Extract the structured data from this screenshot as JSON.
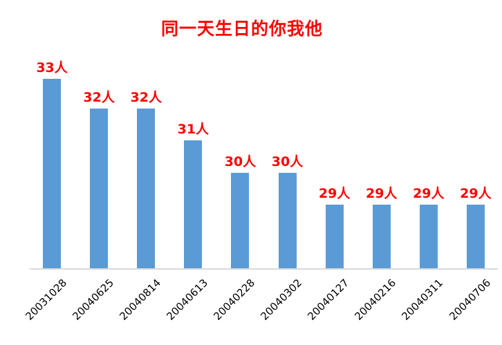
{
  "chart_data": {
    "type": "bar",
    "title": "同一天生日的你我他",
    "categories": [
      "20031028",
      "20040625",
      "20040814",
      "20040613",
      "20040228",
      "20040302",
      "20040127",
      "20040216",
      "20040311",
      "20040706"
    ],
    "values": [
      33,
      32,
      32,
      31,
      30,
      30,
      29,
      29,
      29,
      29
    ],
    "data_labels": [
      "33人",
      "32人",
      "32人",
      "31人",
      "30人",
      "30人",
      "29人",
      "29人",
      "29人",
      "29人"
    ],
    "unit": "人",
    "xlabel": "",
    "ylabel": "",
    "ylim": [
      27,
      33.5
    ],
    "grid": false,
    "legend": "none",
    "colors": {
      "bar": "#5B9BD5",
      "data_label": "#FF0000",
      "title": "#FF0000",
      "axis_line": "#D9D9D9",
      "tick_label": "#000000",
      "background": "#FFFFFF"
    }
  }
}
